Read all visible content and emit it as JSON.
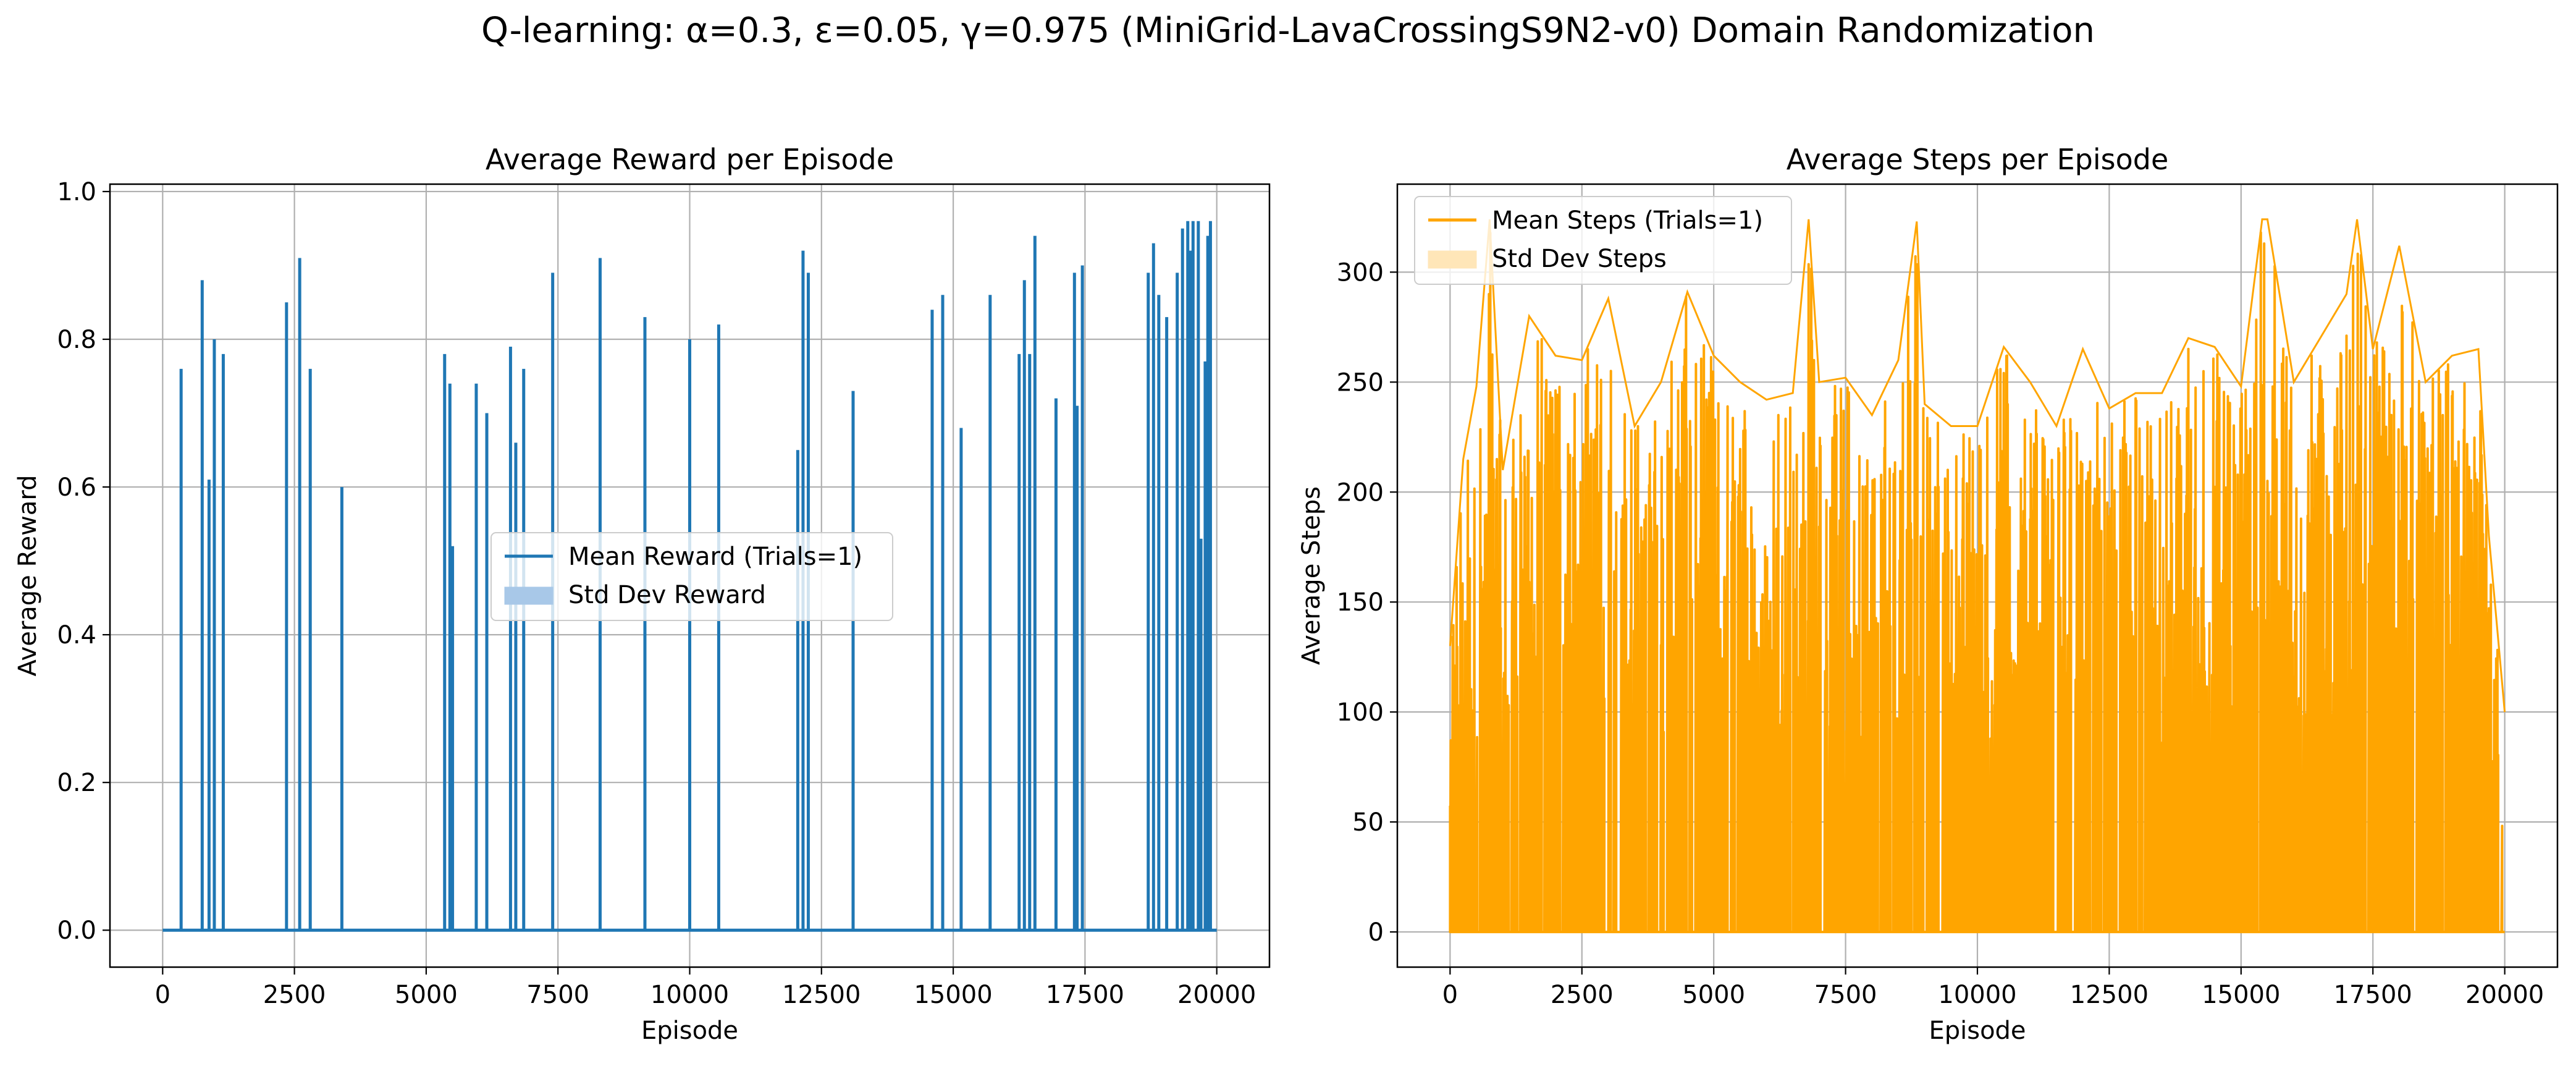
{
  "figure": {
    "suptitle": "Q-learning: α=0.3, ε=0.05, γ=0.975 (MiniGrid-LavaCrossingS9N2-v0) Domain Randomization"
  },
  "colors": {
    "reward_line": "#1f77b4",
    "reward_band": "#a8c8e8",
    "steps_line": "#ffa500",
    "steps_band": "#ffe6b8",
    "grid": "#b0b0b0",
    "axes": "#000000"
  },
  "chart_data": [
    {
      "type": "line",
      "title": "Average Reward per Episode",
      "xlabel": "Episode",
      "ylabel": "Average Reward",
      "xlim": [
        -1000,
        21000
      ],
      "ylim": [
        -0.05,
        1.01
      ],
      "xticks": [
        0,
        2500,
        5000,
        7500,
        10000,
        12500,
        15000,
        17500,
        20000
      ],
      "yticks": [
        0.0,
        0.2,
        0.4,
        0.6,
        0.8,
        1.0
      ],
      "ytick_labels": [
        "0.0",
        "0.2",
        "0.4",
        "0.6",
        "0.8",
        "1.0"
      ],
      "grid": true,
      "legend_position": "center",
      "baseline": 0.0,
      "episodes": 20000,
      "series": [
        {
          "name": "Mean Reward (Trials=1)",
          "kind": "line",
          "spikes": [
            [
              350,
              0.76
            ],
            [
              750,
              0.88
            ],
            [
              880,
              0.61
            ],
            [
              980,
              0.8
            ],
            [
              1150,
              0.78
            ],
            [
              2350,
              0.85
            ],
            [
              2600,
              0.91
            ],
            [
              2800,
              0.76
            ],
            [
              3400,
              0.6
            ],
            [
              5350,
              0.78
            ],
            [
              5450,
              0.74
            ],
            [
              5500,
              0.52
            ],
            [
              5950,
              0.74
            ],
            [
              6150,
              0.7
            ],
            [
              6600,
              0.79
            ],
            [
              6700,
              0.66
            ],
            [
              6850,
              0.76
            ],
            [
              7400,
              0.89
            ],
            [
              8300,
              0.91
            ],
            [
              9150,
              0.83
            ],
            [
              10000,
              0.8
            ],
            [
              10550,
              0.82
            ],
            [
              12050,
              0.65
            ],
            [
              12150,
              0.92
            ],
            [
              12250,
              0.89
            ],
            [
              13100,
              0.73
            ],
            [
              14600,
              0.84
            ],
            [
              14800,
              0.86
            ],
            [
              15150,
              0.68
            ],
            [
              15700,
              0.86
            ],
            [
              16250,
              0.78
            ],
            [
              16350,
              0.88
            ],
            [
              16450,
              0.78
            ],
            [
              16550,
              0.94
            ],
            [
              16950,
              0.72
            ],
            [
              17300,
              0.89
            ],
            [
              17350,
              0.71
            ],
            [
              17450,
              0.9
            ],
            [
              18700,
              0.89
            ],
            [
              18800,
              0.93
            ],
            [
              18900,
              0.86
            ],
            [
              19050,
              0.83
            ],
            [
              19250,
              0.89
            ],
            [
              19350,
              0.95
            ],
            [
              19450,
              0.96
            ],
            [
              19500,
              0.92
            ],
            [
              19550,
              0.96
            ],
            [
              19650,
              0.96
            ],
            [
              19700,
              0.53
            ],
            [
              19780,
              0.77
            ],
            [
              19830,
              0.94
            ],
            [
              19880,
              0.96
            ]
          ]
        },
        {
          "name": "Std Dev Reward",
          "kind": "band"
        }
      ]
    },
    {
      "type": "line",
      "title": "Average Steps per Episode",
      "xlabel": "Episode",
      "ylabel": "Average Steps",
      "xlim": [
        -1000,
        21000
      ],
      "ylim": [
        -16,
        340
      ],
      "xticks": [
        0,
        2500,
        5000,
        7500,
        10000,
        12500,
        15000,
        17500,
        20000
      ],
      "yticks": [
        0,
        50,
        100,
        150,
        200,
        250,
        300
      ],
      "ytick_labels": [
        "0",
        "50",
        "100",
        "150",
        "200",
        "250",
        "300"
      ],
      "grid": true,
      "legend_position": "top-left",
      "episodes": 20000,
      "series": [
        {
          "name": "Mean Steps (Trials=1)",
          "kind": "line",
          "approximate_envelope": {
            "x": [
              0,
              250,
              500,
              750,
              1000,
              1500,
              2000,
              2500,
              3000,
              3500,
              4000,
              4500,
              5000,
              5500,
              6000,
              6500,
              6800,
              7000,
              7500,
              8000,
              8500,
              8850,
              9000,
              9500,
              10000,
              10500,
              11000,
              11500,
              12000,
              12500,
              13000,
              13500,
              14000,
              14500,
              15000,
              15400,
              15500,
              16000,
              16500,
              17000,
              17200,
              17500,
              18000,
              18500,
              19000,
              19500,
              19700,
              20000
            ],
            "y": [
              130,
              215,
              248,
              324,
              210,
              280,
              262,
              260,
              288,
              230,
              250,
              291,
              262,
              250,
              242,
              245,
              324,
              250,
              252,
              235,
              260,
              323,
              240,
              230,
              230,
              266,
              250,
              230,
              265,
              238,
              245,
              245,
              270,
              266,
              248,
              324,
              324,
              250,
              270,
              290,
              324,
              265,
              312,
              250,
              262,
              265,
              180,
              100
            ]
          },
          "floor": 0
        },
        {
          "name": "Std Dev Steps",
          "kind": "band"
        }
      ]
    }
  ]
}
